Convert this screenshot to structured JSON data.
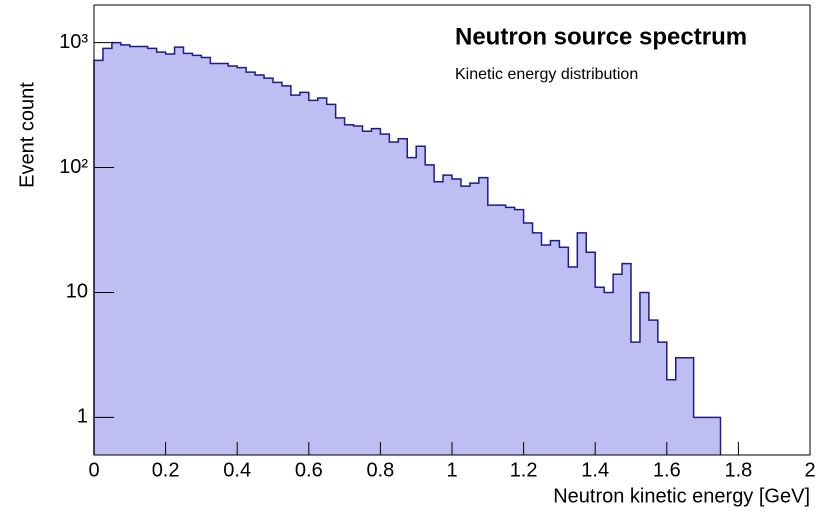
{
  "chart_data": {
    "type": "histogram",
    "title": "Neutron source spectrum",
    "subtitle": "Kinetic energy distribution",
    "x_label": "Neutron kinetic energy [GeV]",
    "y_label": "Event count",
    "bins": [
      0,
      0.025,
      0.05,
      0.075,
      0.1,
      0.125,
      0.15,
      0.175,
      0.2,
      0.225,
      0.25,
      0.275,
      0.3,
      0.325,
      0.35,
      0.375,
      0.4,
      0.425,
      0.45,
      0.475,
      0.5,
      0.525,
      0.55,
      0.575,
      0.6,
      0.625,
      0.65,
      0.675,
      0.7,
      0.725,
      0.75,
      0.775,
      0.8,
      0.825,
      0.85,
      0.875,
      0.9,
      0.925,
      0.95,
      0.975,
      1,
      1.025,
      1.05,
      1.075,
      1.1,
      1.125,
      1.15,
      1.175,
      1.2,
      1.225,
      1.25,
      1.275,
      1.3,
      1.325,
      1.35,
      1.375,
      1.4,
      1.425,
      1.45,
      1.475,
      1.5,
      1.525,
      1.55,
      1.575,
      1.6,
      1.625,
      1.65,
      1.675,
      1.7,
      1.725,
      1.75
    ],
    "values": [
      720,
      900,
      1000,
      960,
      930,
      930,
      900,
      840,
      810,
      920,
      820,
      790,
      760,
      680,
      680,
      650,
      630,
      580,
      550,
      520,
      480,
      450,
      380,
      400,
      345,
      360,
      320,
      250,
      220,
      215,
      195,
      205,
      185,
      160,
      170,
      120,
      148,
      105,
      77,
      87,
      81,
      71,
      75,
      83,
      50,
      50,
      48,
      46,
      36,
      30,
      24,
      26,
      23,
      16,
      30,
      21,
      11,
      10,
      14,
      17,
      4,
      10,
      6,
      4,
      2,
      3,
      3,
      1,
      1,
      1
    ],
    "color": "#bebef2",
    "line_color": "#1c1c8e",
    "xlim": [
      0,
      2
    ],
    "xticks": [
      0,
      0.2,
      0.4,
      0.6,
      0.8,
      1,
      1.2,
      1.4,
      1.6,
      1.8,
      2
    ],
    "ylim": [
      0.5,
      2000
    ],
    "yticks": [
      1,
      10,
      {
        "value": 100,
        "label": "10²"
      },
      {
        "value": 1000,
        "label": "10³"
      }
    ],
    "log_y": true
  }
}
